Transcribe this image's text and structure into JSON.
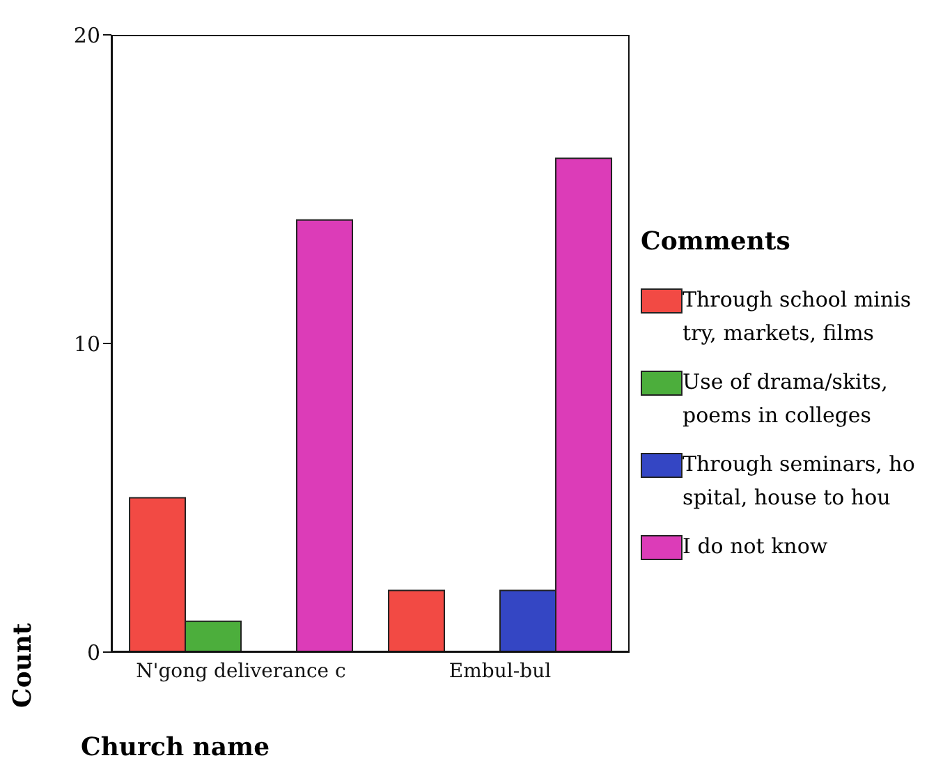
{
  "chart_data": {
    "type": "bar",
    "xlabel": "Church name",
    "ylabel": "Count",
    "legend_title": "Comments",
    "categories": [
      "N'gong deliverance c",
      "Embul-bul"
    ],
    "series": [
      {
        "name": "Through school minis\ntry, markets, films",
        "color": "#f24a44",
        "values": [
          5,
          2
        ]
      },
      {
        "name": "Use of drama/skits,\npoems in colleges",
        "color": "#4cae3c",
        "values": [
          1,
          0
        ]
      },
      {
        "name": "Through seminars, ho\nspital, house to hou",
        "color": "#3446c4",
        "values": [
          0,
          2
        ]
      },
      {
        "name": "I do not know",
        "color": "#dc3cb8",
        "values": [
          14,
          16
        ]
      }
    ],
    "ylim": [
      0,
      20
    ],
    "yticks": [
      0,
      10,
      20
    ],
    "grid": false,
    "legend": "right"
  }
}
